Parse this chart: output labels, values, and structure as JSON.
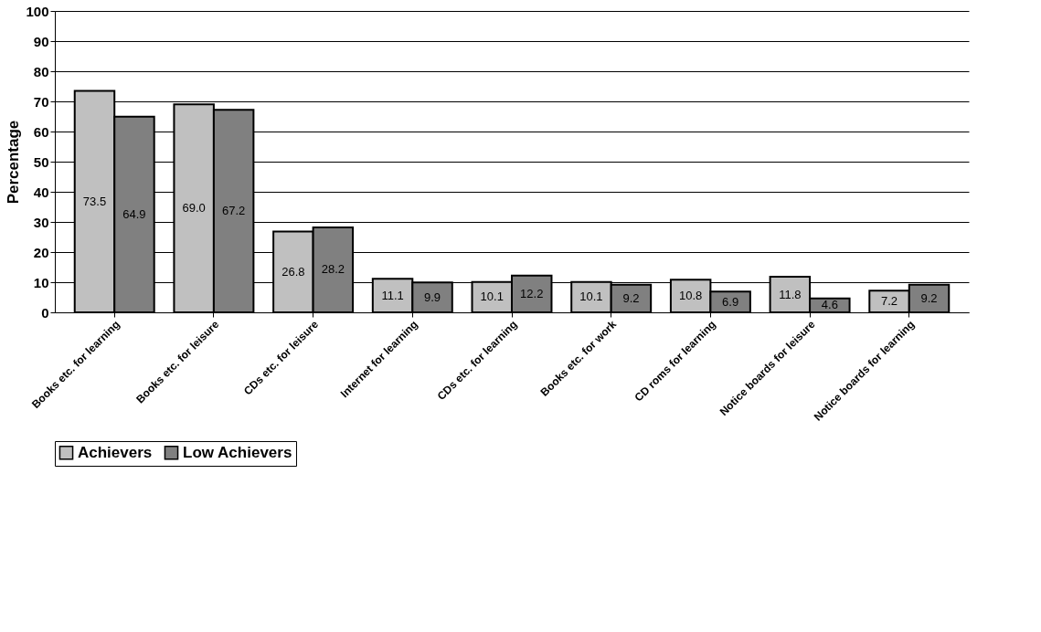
{
  "chart_data": {
    "type": "bar",
    "ylabel": "Percentage",
    "categories": [
      "Books etc. for learning",
      "Books etc. for leisure",
      "CDs etc. for leisure",
      "Internet for learning",
      "CDs etc. for learning",
      "Books etc. for work",
      "CD roms for learning",
      "Notice boards for leisure",
      "Notice boards for learning"
    ],
    "series": [
      {
        "name": "Achievers",
        "color": "#c0c0c0",
        "values": [
          73.5,
          69.0,
          26.8,
          11.1,
          10.1,
          10.1,
          10.8,
          11.8,
          7.2
        ],
        "value_labels": [
          "73.5",
          "69.0",
          "26.8",
          "11.1",
          "10.1",
          "10.1",
          "10.8",
          "11.8",
          "7.2"
        ]
      },
      {
        "name": "Low Achievers",
        "color": "#808080",
        "values": [
          64.9,
          67.2,
          28.2,
          9.9,
          12.2,
          9.2,
          6.9,
          4.6,
          9.2
        ],
        "value_labels": [
          "64.9",
          "67.2",
          "28.2",
          "9.9",
          "12.2",
          "9.2",
          "6.9",
          "4.6",
          "9.2"
        ]
      }
    ],
    "ylim": [
      0,
      100
    ],
    "yticks": [
      0,
      10,
      20,
      30,
      40,
      50,
      60,
      70,
      80,
      90,
      100
    ],
    "grid": "y",
    "legend": "bottom"
  }
}
